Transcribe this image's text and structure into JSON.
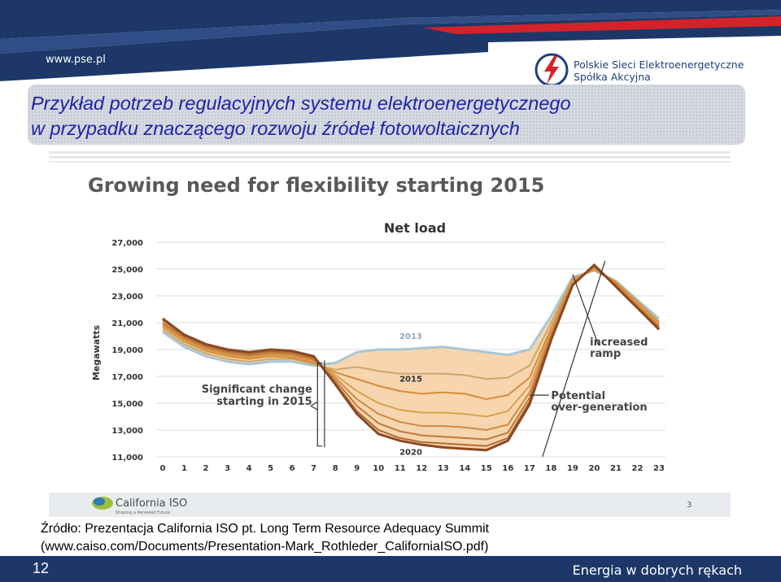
{
  "header": {
    "site_url": "www.pse.pl",
    "org_name_line1": "Polskie Sieci Elektroenergetyczne",
    "org_name_line2": "Spółka Akcyjna"
  },
  "slide": {
    "title_line1": "Przykład potrzeb regulacyjnych systemu elektroenergetycznego",
    "title_line2": "w przypadku znaczącego rozwoju źródeł fotowoltaicznych",
    "source_line1": "Źródło: Prezentacja California ISO pt. Long Term Resource Adequacy Summit",
    "source_line2": "(www.caiso.com/Documents/Presentation-Mark_Rothleder_CaliforniaISO.pdf)",
    "page_number": "12",
    "slogan": "Energia w dobrych rękach"
  },
  "embedded": {
    "logo_text": "California ISO",
    "logo_tagline": "Shaping a Renewed Future",
    "page_number": "3"
  },
  "colors": {
    "header_blue": "#1d3768",
    "title_blue": "#1e24a8",
    "pse_red": "#d2232a",
    "fill": "#f6d2a6",
    "series_2013": "#a9c6d4",
    "series_2014": "#c9a86a",
    "series_2015": "#d98a3a",
    "series_2016": "#d9a04d",
    "series_2017": "#cf8a45",
    "series_2018": "#c07a3c",
    "series_2019": "#b06a32",
    "series_2020": "#8b4a22"
  },
  "chart_data": {
    "type": "line",
    "title": "Growing need for flexibility starting 2015",
    "subtitle": "Net load",
    "ylabel": "Megawatts",
    "xlabel": "",
    "ylim": [
      11000,
      27000
    ],
    "yticks": [
      "11,000",
      "13,000",
      "15,000",
      "17,000",
      "19,000",
      "21,000",
      "23,000",
      "25,000",
      "27,000"
    ],
    "x": [
      0,
      1,
      2,
      3,
      4,
      5,
      6,
      7,
      8,
      9,
      10,
      11,
      12,
      13,
      14,
      15,
      16,
      17,
      18,
      19,
      20,
      21,
      22,
      23
    ],
    "series": [
      {
        "name": "2013",
        "values": [
          20300,
          19200,
          18500,
          18100,
          17900,
          18100,
          18100,
          17800,
          18000,
          18800,
          19000,
          19000,
          19100,
          19200,
          19000,
          18800,
          18600,
          19000,
          21500,
          24400,
          24900,
          24100,
          22700,
          21300
        ]
      },
      {
        "values": [
          20500,
          19400,
          18700,
          18300,
          18100,
          18300,
          18300,
          17900,
          17500,
          17700,
          17400,
          17200,
          17200,
          17200,
          17100,
          16800,
          16900,
          17800,
          21000,
          24300,
          24900,
          24100,
          22600,
          21100
        ]
      },
      {
        "name": "2015",
        "values": [
          20700,
          19600,
          18900,
          18500,
          18300,
          18500,
          18400,
          18000,
          17300,
          16800,
          16300,
          15900,
          15700,
          15800,
          15700,
          15300,
          15600,
          16900,
          20600,
          24200,
          25000,
          24000,
          22500,
          21000
        ]
      },
      {
        "values": [
          20800,
          19700,
          19000,
          18600,
          18400,
          18600,
          18500,
          18100,
          17100,
          15900,
          15000,
          14500,
          14300,
          14300,
          14200,
          14000,
          14400,
          16300,
          20400,
          24100,
          25000,
          23900,
          22400,
          20900
        ]
      },
      {
        "values": [
          20900,
          19800,
          19100,
          18700,
          18500,
          18700,
          18600,
          18200,
          16900,
          15300,
          14200,
          13600,
          13300,
          13300,
          13200,
          13000,
          13400,
          15800,
          20200,
          24000,
          25100,
          23900,
          22300,
          20800
        ]
      },
      {
        "values": [
          21000,
          19900,
          19200,
          18800,
          18600,
          18800,
          18700,
          18300,
          16700,
          14800,
          13500,
          12900,
          12600,
          12500,
          12400,
          12300,
          12800,
          15400,
          20000,
          23900,
          25200,
          23800,
          22200,
          20700
        ]
      },
      {
        "values": [
          21200,
          20000,
          19300,
          18900,
          18700,
          18900,
          18800,
          18400,
          16500,
          14400,
          13000,
          12400,
          12100,
          12000,
          11900,
          11800,
          12400,
          15100,
          19800,
          23800,
          25300,
          23800,
          22100,
          20600
        ]
      },
      {
        "name": "2020",
        "values": [
          21300,
          20100,
          19400,
          19000,
          18800,
          19000,
          18900,
          18500,
          16400,
          14200,
          12700,
          12200,
          11900,
          11700,
          11600,
          11500,
          12200,
          14900,
          19700,
          23800,
          25300,
          23700,
          22100,
          20500
        ]
      }
    ],
    "annotations": [
      "Significant change starting in 2015",
      "increased ramp",
      "Potential over-generation"
    ]
  }
}
